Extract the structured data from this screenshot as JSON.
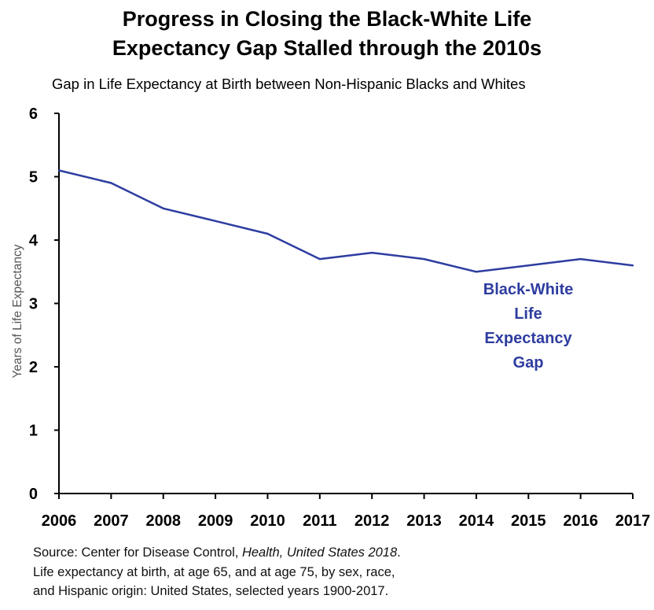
{
  "title_lines": [
    "Progress in Closing the Black-White Life",
    "Expectancy Gap Stalled through the 2010s"
  ],
  "subtitle": "Gap in Life Expectancy at Birth between  Non-Hispanic Blacks and Whites",
  "source": {
    "prefix": "Source: Center for Disease Control, ",
    "italic": "Health, United States 2018",
    "suffix": ".",
    "line2": "Life expectancy at birth, at age 65, and at age 75, by sex, race,",
    "line3": "and Hispanic origin: United States, selected years 1900-2017."
  },
  "colors": {
    "series": "#2E3DA0",
    "axis": "#000000",
    "ylabel": "#555555"
  },
  "chart_data": {
    "type": "line",
    "title": "Progress in Closing the Black-White Life Expectancy Gap Stalled through the 2010s",
    "subtitle": "Gap in Life Expectancy at Birth between  Non-Hispanic Blacks and Whites",
    "xlabel": "",
    "ylabel": "Years of Life Expectancy",
    "x": [
      2006,
      2007,
      2008,
      2009,
      2010,
      2011,
      2012,
      2013,
      2014,
      2015,
      2016,
      2017
    ],
    "series": [
      {
        "name": "Black-White Life Expectancy Gap",
        "label_lines": [
          "Black-White",
          "Life",
          "Expectancy",
          "Gap"
        ],
        "values": [
          5.1,
          4.9,
          4.5,
          4.3,
          4.1,
          3.7,
          3.8,
          3.7,
          3.5,
          3.6,
          3.7,
          3.6
        ]
      }
    ],
    "ylim": [
      0,
      6
    ],
    "yticks": [
      0,
      1,
      2,
      3,
      4,
      5,
      6
    ],
    "grid": false,
    "legend": "inline label below line"
  }
}
